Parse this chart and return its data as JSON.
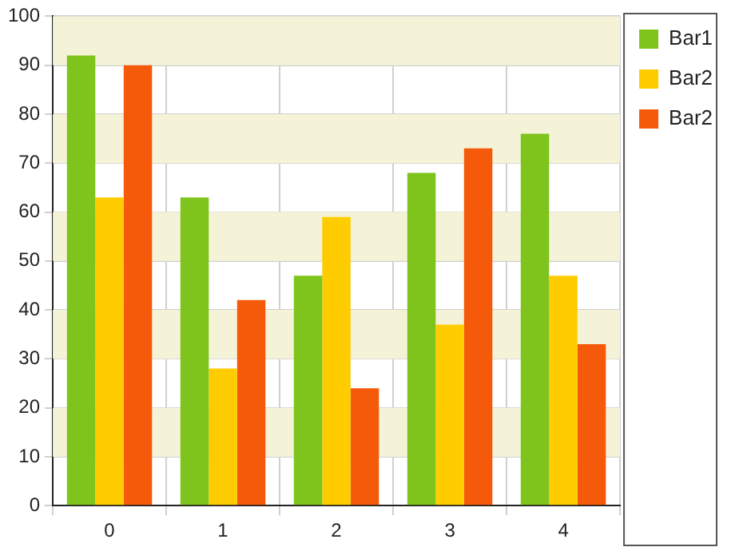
{
  "chart_data": {
    "type": "bar",
    "categories": [
      "0",
      "1",
      "2",
      "3",
      "4"
    ],
    "series": [
      {
        "name": "Bar1",
        "color": "#7fc41c",
        "values": [
          92,
          63,
          47,
          68,
          76
        ]
      },
      {
        "name": "Bar2",
        "color": "#ffcc00",
        "values": [
          63,
          28,
          59,
          37,
          47
        ]
      },
      {
        "name": "Bar2",
        "color": "#f55a0a",
        "values": [
          90,
          42,
          24,
          73,
          33
        ]
      }
    ],
    "ylim": [
      0,
      100
    ],
    "yticks": [
      0,
      10,
      20,
      30,
      40,
      50,
      60,
      70,
      80,
      90,
      100
    ],
    "bands": [
      {
        "axis": "y",
        "from": 10,
        "to": 20,
        "color": "#f5f3d7"
      },
      {
        "axis": "y",
        "from": 30,
        "to": 40,
        "color": "#f5f3d7"
      },
      {
        "axis": "y",
        "from": 50,
        "to": 60,
        "color": "#f5f3d7"
      },
      {
        "axis": "y",
        "from": 70,
        "to": 80,
        "color": "#f5f3d7"
      },
      {
        "axis": "y",
        "from": 90,
        "to": 100,
        "color": "#f5f3d7"
      }
    ],
    "grid": true,
    "legend": "top right"
  }
}
